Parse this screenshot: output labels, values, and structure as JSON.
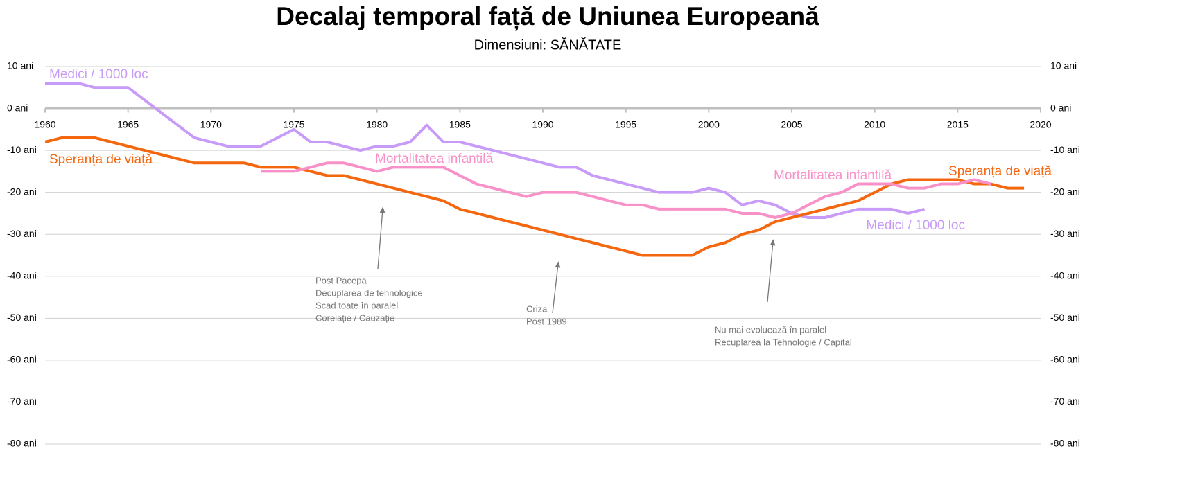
{
  "chart_data": {
    "type": "line",
    "title": "Decalaj temporal față de Uniunea Europeană",
    "subtitle": "Dimensiuni: SĂNĂTATE",
    "x": [
      1960,
      1961,
      1962,
      1963,
      1964,
      1965,
      1966,
      1967,
      1968,
      1969,
      1970,
      1971,
      1972,
      1973,
      1974,
      1975,
      1976,
      1977,
      1978,
      1979,
      1980,
      1981,
      1982,
      1983,
      1984,
      1985,
      1986,
      1987,
      1988,
      1989,
      1990,
      1991,
      1992,
      1993,
      1994,
      1995,
      1996,
      1997,
      1998,
      1999,
      2000,
      2001,
      2002,
      2003,
      2004,
      2005,
      2006,
      2007,
      2008,
      2009,
      2010,
      2011,
      2012,
      2013,
      2014,
      2015,
      2016,
      2017,
      2018,
      2019
    ],
    "xlim": [
      1960,
      2020
    ],
    "xticks": [
      1960,
      1965,
      1970,
      1975,
      1980,
      1985,
      1990,
      1995,
      2000,
      2005,
      2010,
      2015,
      2020
    ],
    "ylim": [
      -80,
      10
    ],
    "yticks": [
      {
        "value": 10,
        "label": "10 ani"
      },
      {
        "value": 0,
        "label": "0 ani"
      },
      {
        "value": -10,
        "label": "-10 ani"
      },
      {
        "value": -20,
        "label": "-20 ani"
      },
      {
        "value": -30,
        "label": "-30 ani"
      },
      {
        "value": -40,
        "label": "-40 ani"
      },
      {
        "value": -50,
        "label": "-50 ani"
      },
      {
        "value": -60,
        "label": "-60 ani"
      },
      {
        "value": -70,
        "label": "-70 ani"
      },
      {
        "value": -80,
        "label": "-80 ani"
      }
    ],
    "grid": true,
    "series": [
      {
        "name": "Medici / 1000 loc",
        "color": "#c79bf7",
        "values": [
          6,
          6,
          6,
          5,
          5,
          5,
          2,
          -1,
          -4,
          -7,
          -8,
          -9,
          -9,
          -9,
          -7,
          -5,
          -8,
          -8,
          -9,
          -10,
          -9,
          -9,
          -8,
          -4,
          -8,
          -8,
          -9,
          -10,
          -11,
          -12,
          -13,
          -14,
          -14,
          -16,
          -17,
          -18,
          -19,
          -20,
          -20,
          -20,
          -19,
          -20,
          -23,
          -22,
          -23,
          -25,
          -26,
          -26,
          -25,
          -24,
          -24,
          -24,
          -25,
          -24,
          null,
          null,
          null,
          null,
          null,
          null
        ]
      },
      {
        "name": "Speranța de viață",
        "color": "#f4670f",
        "values": [
          -8,
          -7,
          -7,
          -7,
          -8,
          -9,
          -10,
          -11,
          -12,
          -13,
          -13,
          -13,
          -13,
          -14,
          -14,
          -14,
          -15,
          -16,
          -16,
          -17,
          -18,
          -19,
          -20,
          -21,
          -22,
          -24,
          -25,
          -26,
          -27,
          -28,
          -29,
          -30,
          -31,
          -32,
          -33,
          -34,
          -35,
          -35,
          -35,
          -35,
          -33,
          -32,
          -30,
          -29,
          -27,
          -26,
          -25,
          -24,
          -23,
          -22,
          -20,
          -18,
          -17,
          -17,
          -17,
          -17,
          -18,
          -18,
          -19,
          -19
        ]
      },
      {
        "name": "Mortalitatea infantilă",
        "color": "#f991c9",
        "values": [
          null,
          null,
          null,
          null,
          null,
          null,
          null,
          null,
          null,
          null,
          null,
          null,
          null,
          -15,
          -15,
          -15,
          -14,
          -13,
          -13,
          -14,
          -15,
          -14,
          -14,
          -14,
          -14,
          -16,
          -18,
          -19,
          -20,
          -21,
          -20,
          -20,
          -20,
          -21,
          -22,
          -23,
          -23,
          -24,
          -24,
          -24,
          -24,
          -24,
          -25,
          -25,
          -26,
          -25,
          -23,
          -21,
          -20,
          -18,
          -18,
          -18,
          -19,
          -19,
          -18,
          -18,
          -17,
          -18,
          null,
          null
        ]
      }
    ],
    "annotations": [
      {
        "lines": [
          "Post Pacepa",
          "Decuplarea de tehnologice",
          "Scad toate în paralel",
          "Corelație / Cauzație"
        ]
      },
      {
        "lines": [
          "Criza",
          "Post 1989"
        ]
      },
      {
        "lines": [
          "Nu mai evoluează în paralel",
          "Recuplarea la Tehnologie / Capital"
        ]
      }
    ]
  }
}
